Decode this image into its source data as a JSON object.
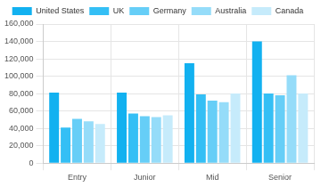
{
  "chart_data": {
    "type": "bar",
    "categories": [
      "Entry",
      "Junior",
      "Mid",
      "Senior"
    ],
    "series": [
      {
        "name": "United States",
        "color": "#12b1f0",
        "values": [
          81000,
          81000,
          115000,
          140000
        ]
      },
      {
        "name": "UK",
        "color": "#34bff5",
        "values": [
          41000,
          57000,
          79000,
          80000
        ]
      },
      {
        "name": "Germany",
        "color": "#66cef7",
        "values": [
          51000,
          54000,
          72000,
          78000
        ]
      },
      {
        "name": "Australia",
        "color": "#95dcf9",
        "values": [
          48000,
          53000,
          70000,
          101000
        ]
      },
      {
        "name": "Canada",
        "color": "#c6ebfb",
        "values": [
          45000,
          55000,
          80000,
          80000
        ]
      }
    ],
    "ylim": [
      0,
      160000
    ],
    "yticks": [
      0,
      {
        "value": 20000,
        "label": "20,000"
      },
      {
        "value": 40000,
        "label": "40,000"
      },
      {
        "value": 60000,
        "label": "60,000"
      },
      {
        "value": 80000,
        "label": "80,000"
      },
      {
        "value": 100000,
        "label": "100,000"
      },
      {
        "value": 120000,
        "label": "120,000"
      },
      {
        "value": 140000,
        "label": "140,000"
      },
      {
        "value": 160000,
        "label": "160,000"
      }
    ],
    "grid": true,
    "legend": "top"
  }
}
